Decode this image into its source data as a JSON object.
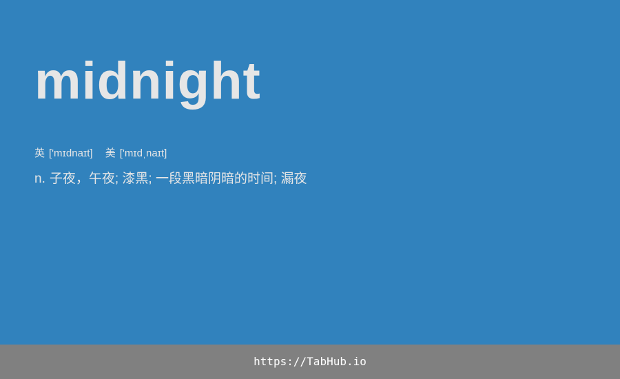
{
  "colors": {
    "card_background": "#3182bd",
    "footer_background": "#808080",
    "word_text": "#e6e6e6",
    "body_text": "#e6e6e6",
    "footer_text": "#ffffff"
  },
  "entry": {
    "word": "midnight",
    "phonetics": {
      "uk": {
        "region": "英",
        "ipa": "['mɪdnaɪt]"
      },
      "us": {
        "region": "美",
        "ipa": "['mɪdˌnaɪt]"
      }
    },
    "definition": {
      "pos": "n.",
      "meaning": "子夜，午夜; 漆黑; 一段黑暗阴暗的时间; 漏夜"
    }
  },
  "footer": {
    "url": "https://TabHub.io"
  }
}
